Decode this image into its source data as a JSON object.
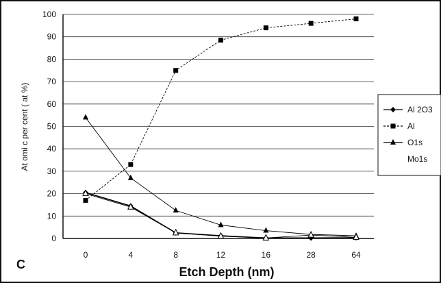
{
  "panel_label": "C",
  "chart_data": {
    "type": "line",
    "categories": [
      "0",
      "4",
      "8",
      "12",
      "16",
      "28",
      "64"
    ],
    "xlabel": "Etch Depth (nm)",
    "ylabel": "At omi c  per cent ( at %)",
    "ylim": [
      0,
      100
    ],
    "yticks": [
      0,
      10,
      20,
      30,
      40,
      50,
      60,
      70,
      80,
      90,
      100
    ],
    "grid": true,
    "legend_position": "right",
    "series": [
      {
        "name": "Al 2O3",
        "marker": "diamond",
        "line": "solid",
        "color": "#000000",
        "values": [
          20.5,
          14.5,
          2.5,
          1.2,
          0.2,
          0.2,
          0.3
        ]
      },
      {
        "name": "Al",
        "marker": "square",
        "line": "dashed",
        "color": "#000000",
        "values": [
          17,
          33,
          75,
          88.5,
          94,
          96,
          98
        ]
      },
      {
        "name": "O1s",
        "marker": "triangle",
        "line": "solid-thin",
        "color": "#000000",
        "values": [
          54,
          27,
          12.5,
          6,
          3.5,
          1.8,
          1.2
        ]
      },
      {
        "name": "Mo1s",
        "marker": "triangle-open",
        "line": "solid-thin",
        "color": "#000000",
        "values": [
          20,
          14,
          2.5,
          1,
          0.2,
          1.5,
          0.5
        ]
      }
    ],
    "legend_display": [
      "Al 2O3",
      "Al",
      "O1s",
      "Mo1s"
    ]
  }
}
